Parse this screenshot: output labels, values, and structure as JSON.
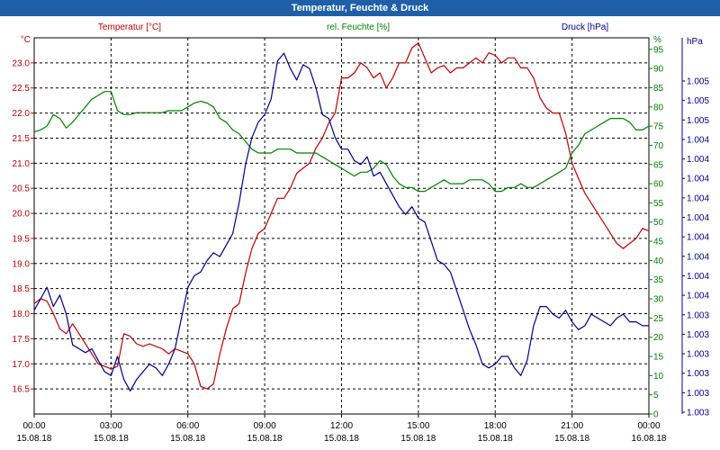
{
  "window": {
    "title": "Temperatur, Feuchte & Druck"
  },
  "chart_data": {
    "type": "line",
    "title": "Temperatur, Feuchte & Druck",
    "x_tick_labels": [
      [
        "00:00",
        "15.08.18"
      ],
      [
        "03:00",
        "15.08.18"
      ],
      [
        "06:00",
        "15.08.18"
      ],
      [
        "09:00",
        "15.08.18"
      ],
      [
        "12:00",
        "15.08.18"
      ],
      [
        "15:00",
        "15.08.18"
      ],
      [
        "18:00",
        "15.08.18"
      ],
      [
        "21:00",
        "15.08.18"
      ],
      [
        "00:00",
        "16.08.18"
      ]
    ],
    "xlim_hours": [
      0,
      24
    ],
    "grid": true,
    "axes": {
      "temperature": {
        "label": "Temperatur [°C]",
        "unit": "°C",
        "color": "#c00000",
        "ylim": [
          16,
          23.5
        ],
        "ticks": [
          "16.5",
          "17.0",
          "17.5",
          "18.0",
          "18.5",
          "19.0",
          "19.5",
          "20.0",
          "20.5",
          "21.0",
          "21.5",
          "22.0",
          "22.5",
          "23.0"
        ]
      },
      "humidity": {
        "label": "rel. Feuchte [%]",
        "unit": "%",
        "color": "#008000",
        "ylim": [
          0,
          98
        ],
        "ticks": [
          "0",
          "5",
          "10",
          "15",
          "20",
          "25",
          "30",
          "35",
          "40",
          "45",
          "50",
          "55",
          "60",
          "65",
          "70",
          "75",
          "80",
          "85",
          "90",
          "95"
        ]
      },
      "pressure": {
        "label": "Druck [hPa]",
        "unit": "hPa",
        "color": "#00008b",
        "ylim": [
          0,
          98
        ],
        "ticks": [
          "1.003",
          "1.003",
          "1.003",
          "1.003",
          "1.003",
          "1.003",
          "1.004",
          "1.004",
          "1.004",
          "1.004",
          "1.004",
          "1.004",
          "1.004",
          "1.004",
          "1.004",
          "1.005",
          "1.005",
          "1.005"
        ]
      }
    },
    "series": [
      {
        "name": "Temperatur [°C]",
        "axis": "temperature",
        "color": "#c00000",
        "x": [
          0,
          0.25,
          0.5,
          0.75,
          1,
          1.25,
          1.5,
          1.75,
          2,
          2.25,
          2.5,
          2.75,
          3,
          3.25,
          3.5,
          3.75,
          4,
          4.25,
          4.5,
          4.75,
          5,
          5.25,
          5.5,
          5.75,
          6,
          6.25,
          6.5,
          6.75,
          7,
          7.25,
          7.5,
          7.75,
          8,
          8.25,
          8.5,
          8.75,
          9,
          9.25,
          9.5,
          9.75,
          10,
          10.25,
          10.5,
          10.75,
          11,
          11.25,
          11.5,
          11.75,
          12,
          12.25,
          12.5,
          12.75,
          13,
          13.25,
          13.5,
          13.75,
          14,
          14.25,
          14.5,
          14.75,
          15,
          15.25,
          15.5,
          15.75,
          16,
          16.25,
          16.5,
          16.75,
          17,
          17.25,
          17.5,
          17.75,
          18,
          18.25,
          18.5,
          18.75,
          19,
          19.25,
          19.5,
          19.75,
          20,
          20.25,
          20.5,
          20.75,
          21,
          21.25,
          21.5,
          21.75,
          22,
          22.25,
          22.5,
          22.75,
          23,
          23.25,
          23.5,
          23.75,
          24
        ],
        "values": [
          18.2,
          18.3,
          18.25,
          18.0,
          17.7,
          17.6,
          17.8,
          17.6,
          17.4,
          17.2,
          17.0,
          16.95,
          16.9,
          16.95,
          17.6,
          17.55,
          17.4,
          17.35,
          17.4,
          17.35,
          17.3,
          17.2,
          17.3,
          17.25,
          17.2,
          17.0,
          16.55,
          16.5,
          16.6,
          17.2,
          17.7,
          18.1,
          18.2,
          18.8,
          19.3,
          19.6,
          19.7,
          20.0,
          20.3,
          20.3,
          20.5,
          20.8,
          20.9,
          21.0,
          21.3,
          21.5,
          21.8,
          22.0,
          22.7,
          22.7,
          22.8,
          23.0,
          22.9,
          22.7,
          22.8,
          22.5,
          22.7,
          23.0,
          23.0,
          23.3,
          23.4,
          23.1,
          22.8,
          22.9,
          22.95,
          22.8,
          22.9,
          22.9,
          23.0,
          23.1,
          23.0,
          23.2,
          23.15,
          23.0,
          23.1,
          23.1,
          22.9,
          22.9,
          22.7,
          22.3,
          22.1,
          22.0,
          22.0,
          21.6,
          21.0,
          20.7,
          20.4,
          20.2,
          20.0,
          19.8,
          19.6,
          19.4,
          19.3,
          19.4,
          19.5,
          19.7,
          19.65
        ]
      },
      {
        "name": "rel. Feuchte [%]",
        "axis": "humidity",
        "color": "#008000",
        "x": [
          0,
          0.25,
          0.5,
          0.75,
          1,
          1.25,
          1.5,
          1.75,
          2,
          2.25,
          2.5,
          2.75,
          3,
          3.25,
          3.5,
          3.75,
          4,
          4.25,
          4.5,
          4.75,
          5,
          5.25,
          5.5,
          5.75,
          6,
          6.25,
          6.5,
          6.75,
          7,
          7.25,
          7.5,
          7.75,
          8,
          8.25,
          8.5,
          8.75,
          9,
          9.25,
          9.5,
          9.75,
          10,
          10.25,
          10.5,
          10.75,
          11,
          11.25,
          11.5,
          11.75,
          12,
          12.25,
          12.5,
          12.75,
          13,
          13.25,
          13.5,
          13.75,
          14,
          14.25,
          14.5,
          14.75,
          15,
          15.25,
          15.5,
          15.75,
          16,
          16.25,
          16.5,
          16.75,
          17,
          17.25,
          17.5,
          17.75,
          18,
          18.25,
          18.5,
          18.75,
          19,
          19.25,
          19.5,
          19.75,
          20,
          20.25,
          20.5,
          20.75,
          21,
          21.25,
          21.5,
          21.75,
          22,
          22.25,
          22.5,
          22.75,
          23,
          23.25,
          23.5,
          23.75,
          24
        ],
        "values": [
          73.5,
          74,
          75,
          78,
          77,
          74.5,
          76,
          78,
          80,
          82,
          83,
          84,
          84,
          79,
          78,
          78,
          78.5,
          78.5,
          78.5,
          78.5,
          78.5,
          79,
          79,
          79,
          80,
          81,
          81.5,
          81,
          80,
          77,
          76,
          74,
          73,
          71,
          69,
          68,
          68,
          68,
          69,
          69,
          69,
          68,
          68,
          68,
          68,
          67,
          66,
          65,
          64,
          63,
          62,
          63,
          63,
          64,
          66,
          65,
          62,
          60,
          59,
          59,
          58,
          58,
          59,
          60,
          61,
          60,
          60,
          60,
          61,
          61,
          61,
          60,
          58,
          58,
          59,
          59,
          60,
          59,
          59,
          60,
          61,
          62,
          63,
          64,
          68,
          70,
          73,
          74,
          75,
          76,
          77,
          77,
          77,
          76,
          74,
          74,
          75
        ]
      },
      {
        "name": "Druck [hPa]",
        "axis": "pressure",
        "color": "#00008b",
        "x": [
          0,
          0.25,
          0.5,
          0.75,
          1,
          1.25,
          1.5,
          1.75,
          2,
          2.25,
          2.5,
          2.75,
          3,
          3.25,
          3.5,
          3.75,
          4,
          4.25,
          4.5,
          4.75,
          5,
          5.25,
          5.5,
          5.75,
          6,
          6.25,
          6.5,
          6.75,
          7,
          7.25,
          7.5,
          7.75,
          8,
          8.25,
          8.5,
          8.75,
          9,
          9.25,
          9.5,
          9.75,
          10,
          10.25,
          10.5,
          10.75,
          11,
          11.25,
          11.5,
          11.75,
          12,
          12.25,
          12.5,
          12.75,
          13,
          13.25,
          13.5,
          13.75,
          14,
          14.25,
          14.5,
          14.75,
          15,
          15.25,
          15.5,
          15.75,
          16,
          16.25,
          16.5,
          16.75,
          17,
          17.25,
          17.5,
          17.75,
          18,
          18.25,
          18.5,
          18.75,
          19,
          19.25,
          19.5,
          19.75,
          20,
          20.25,
          20.5,
          20.75,
          21,
          21.25,
          21.5,
          21.75,
          22,
          22.25,
          22.5,
          22.75,
          23,
          23.25,
          23.5,
          23.75,
          24
        ],
        "values": [
          27,
          30,
          33,
          28,
          31,
          26,
          18,
          17,
          16,
          17,
          14,
          11,
          10,
          15,
          9,
          6,
          9,
          11,
          13,
          12,
          10,
          13,
          17,
          25,
          33,
          36,
          37,
          40,
          42,
          41,
          44,
          47,
          55,
          65,
          72,
          76,
          78,
          82,
          92,
          94,
          90,
          87,
          91,
          90,
          85,
          78,
          77,
          72,
          69,
          69,
          66,
          65,
          67,
          62,
          63,
          60,
          57,
          54,
          52,
          54,
          51,
          50,
          45,
          40,
          39,
          37,
          32,
          27,
          22,
          18,
          13,
          12,
          13,
          15,
          15,
          12,
          10,
          14,
          23,
          28,
          28,
          26,
          25,
          27,
          24,
          22,
          23,
          26,
          25,
          24,
          23,
          25,
          26,
          24,
          24,
          23,
          23
        ]
      }
    ]
  }
}
